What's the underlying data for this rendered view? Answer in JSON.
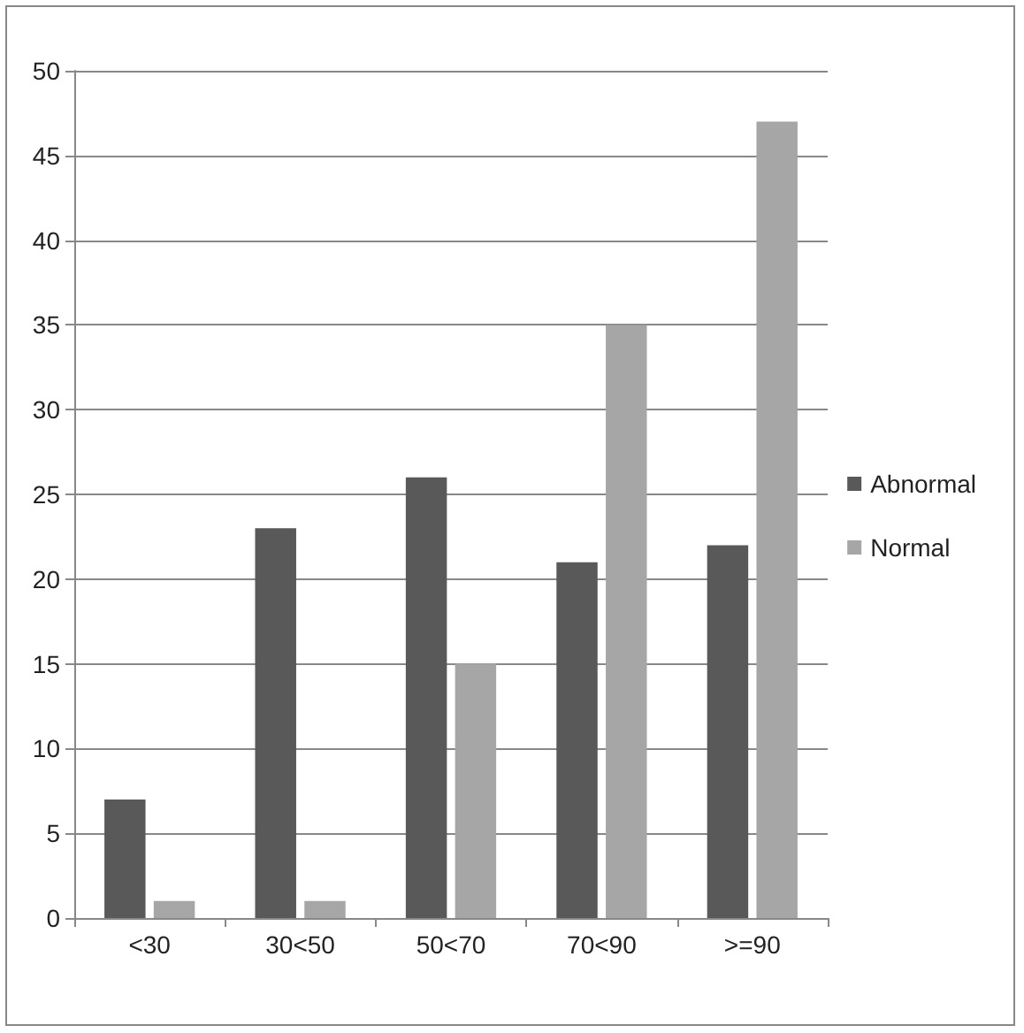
{
  "chart_data": {
    "type": "bar",
    "categories": [
      "<30",
      "30<50",
      "50<70",
      "70<90",
      ">=90"
    ],
    "series": [
      {
        "name": "Abnormal",
        "color": "#595959",
        "values": [
          7,
          23,
          26,
          21,
          22
        ]
      },
      {
        "name": "Normal",
        "color": "#a6a6a6",
        "values": [
          1,
          1,
          15,
          35,
          47
        ]
      }
    ],
    "ylim": [
      0,
      50
    ],
    "yticks": [
      0,
      5,
      10,
      15,
      20,
      25,
      30,
      35,
      40,
      45,
      50
    ],
    "grid": "y",
    "legend": "right"
  }
}
